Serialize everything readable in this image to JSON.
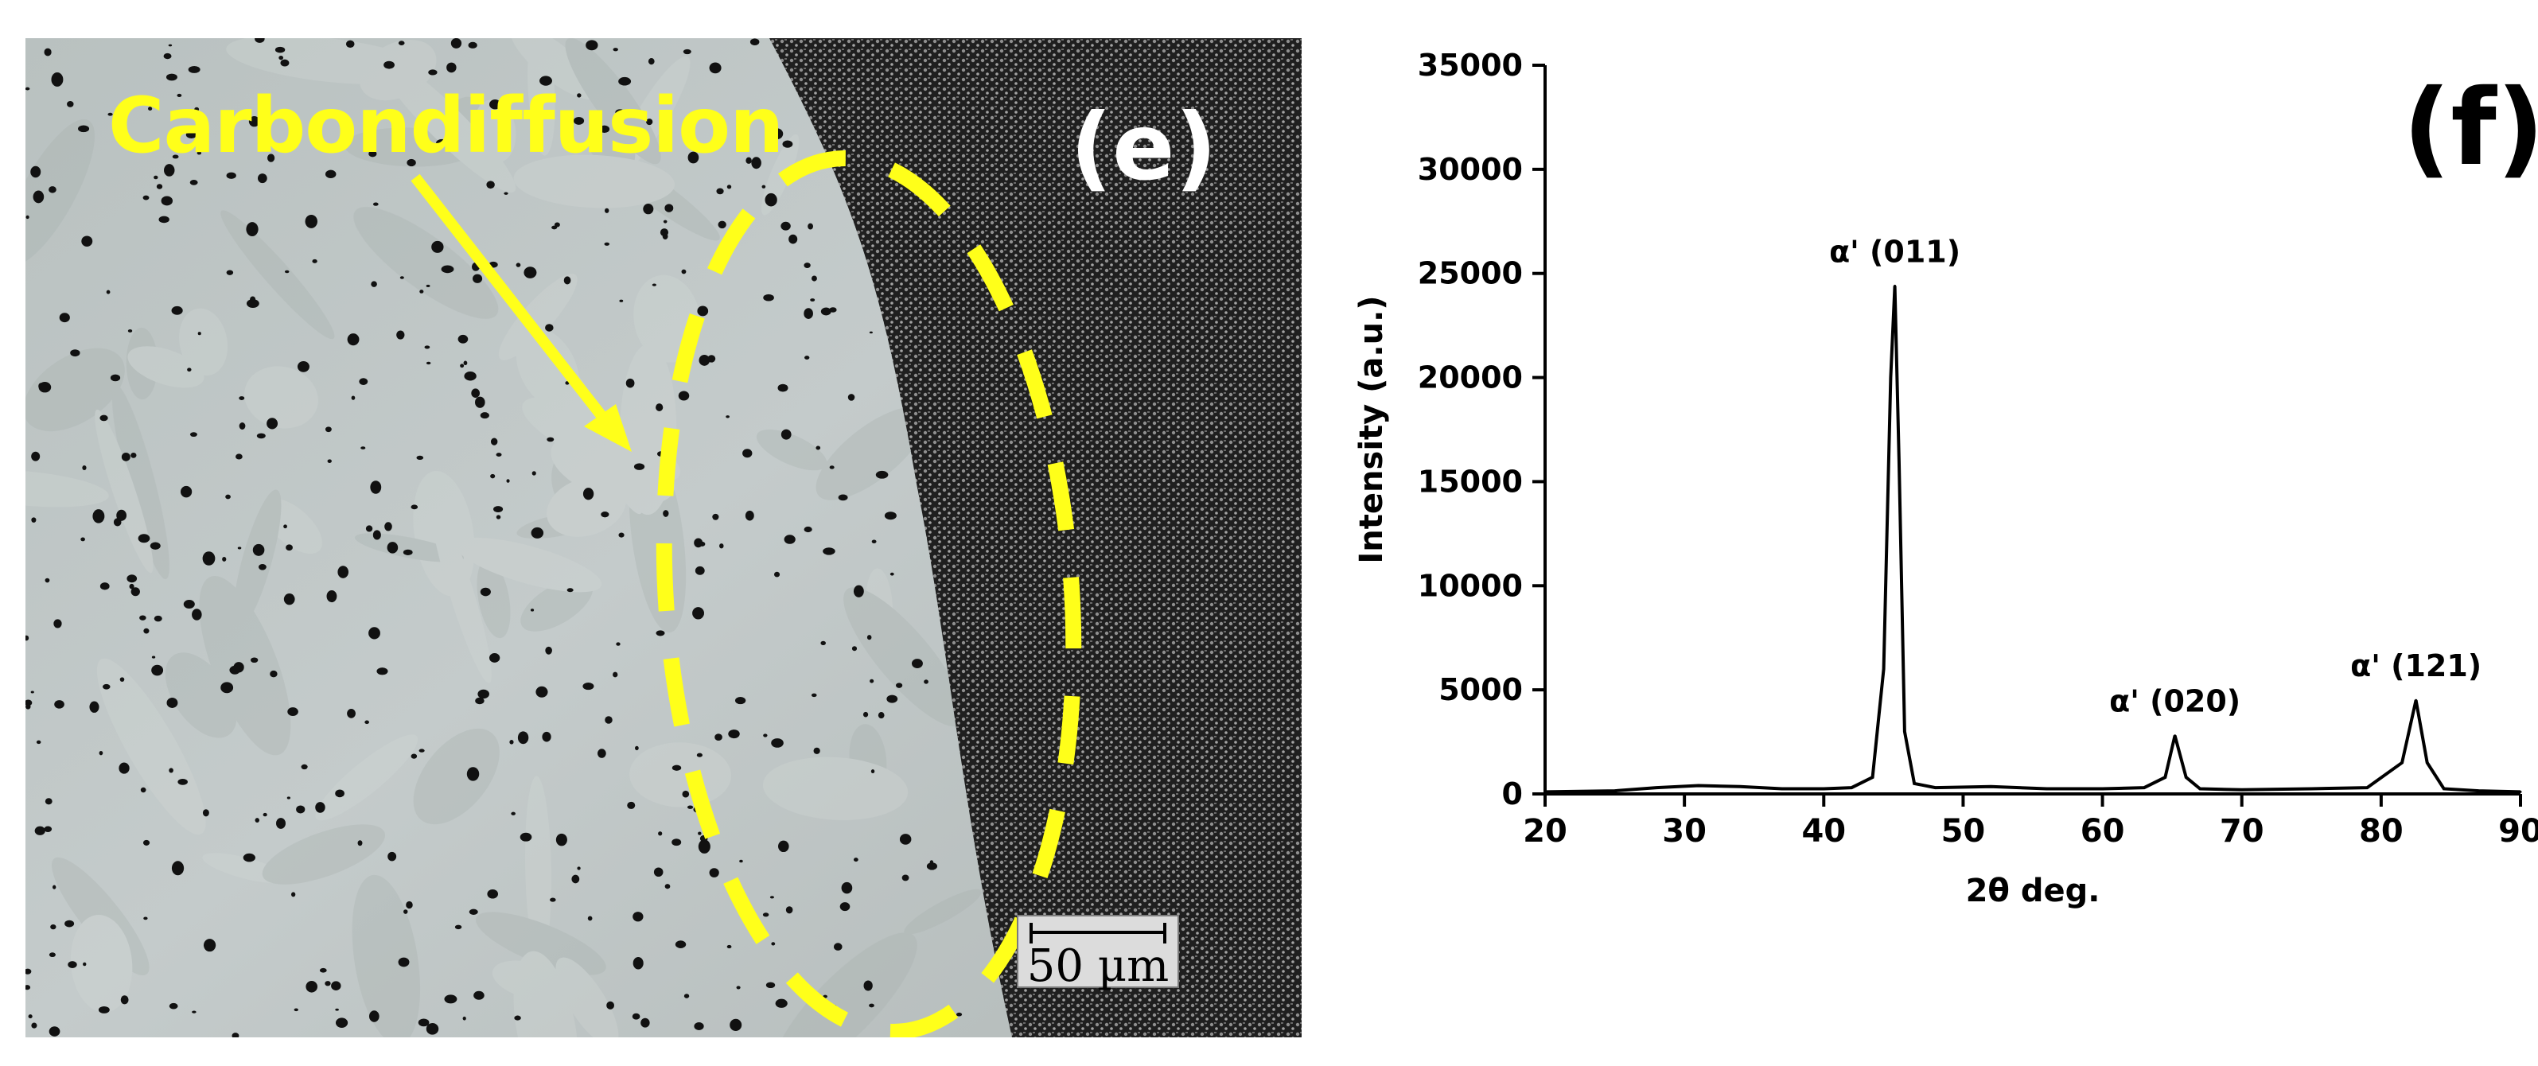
{
  "panel_e": {
    "label": "(e)",
    "annotation": "Carbondiffusion",
    "scale_bar": "50 µm",
    "colors": {
      "annotation": "#ffff1a",
      "label": "#ffffff"
    }
  },
  "panel_f": {
    "label": "(f)"
  },
  "chart_data": {
    "type": "line",
    "xlabel": "2θ deg.",
    "ylabel": "Intensity (a.u.)",
    "xlim": [
      20,
      90
    ],
    "ylim": [
      0,
      35000
    ],
    "x_ticks": [
      20,
      30,
      40,
      50,
      60,
      70,
      80,
      90
    ],
    "y_ticks": [
      0,
      5000,
      10000,
      15000,
      20000,
      25000,
      30000,
      35000
    ],
    "grid": false,
    "series": [
      {
        "x": [
          20,
          25,
          28,
          31,
          34,
          37,
          40,
          42,
          43.5,
          44.3,
          44.8,
          45.1,
          45.4,
          45.8,
          46.5,
          48,
          52,
          56,
          60,
          63,
          64.5,
          65.2,
          66,
          67,
          70,
          75,
          79,
          81.5,
          82.5,
          83.3,
          84.5,
          87,
          90
        ],
        "y": [
          100,
          150,
          300,
          400,
          350,
          250,
          250,
          300,
          800,
          6000,
          20000,
          24400,
          16000,
          3000,
          500,
          300,
          350,
          250,
          250,
          300,
          800,
          2800,
          800,
          250,
          200,
          250,
          300,
          1500,
          4500,
          1500,
          250,
          150,
          100
        ]
      }
    ],
    "annotations": [
      {
        "text": "α' (011)",
        "x": 45.1,
        "y": 24400
      },
      {
        "text": "α' (020)",
        "x": 65.2,
        "y": 2800
      },
      {
        "text": "α' (121)",
        "x": 82.5,
        "y": 4500
      }
    ]
  }
}
